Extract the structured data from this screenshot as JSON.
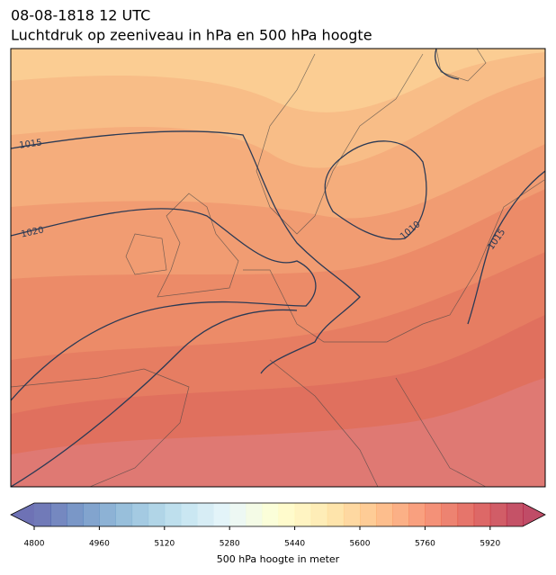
{
  "header": {
    "title": "08-08-1818 12 UTC",
    "subtitle": "Luchtdruk op zeeniveau in hPa en 500 hPa hoogte"
  },
  "map": {
    "isobar_labels": [
      1015,
      1020,
      1010,
      1015
    ]
  },
  "colorbar": {
    "label": "500 hPa hoogte in meter",
    "vlim": [
      4800,
      6000
    ],
    "level_step": 40,
    "ticks": [
      4800,
      4960,
      5120,
      5280,
      5440,
      5600,
      5760,
      5920
    ],
    "extend": "both",
    "colormap": "RdYlBu_r"
  }
}
